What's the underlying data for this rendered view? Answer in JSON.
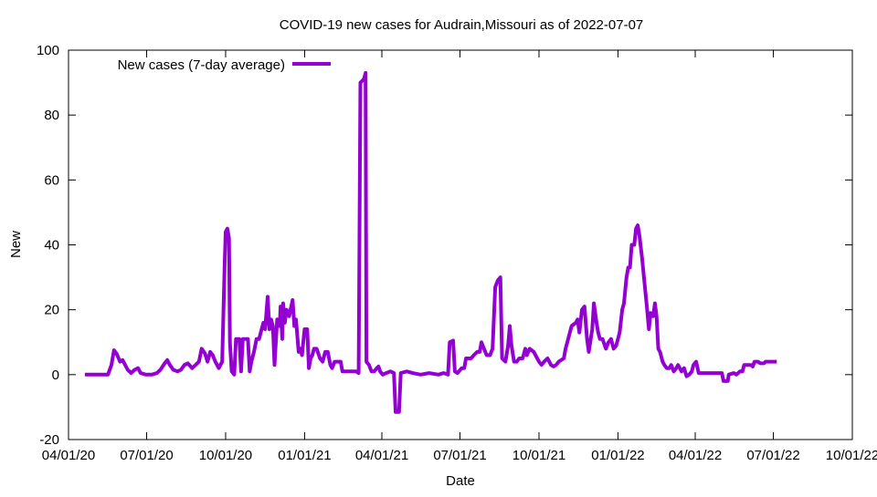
{
  "chart_data": {
    "type": "line",
    "title": "COVID-19 new cases for Audrain,Missouri as of 2022-07-07",
    "xlabel": "Date",
    "ylabel": "New",
    "x_units": "days since 04/01/20",
    "xlim": [
      0,
      913
    ],
    "ylim": [
      -20,
      100
    ],
    "yticks": [
      -20,
      0,
      20,
      40,
      60,
      80,
      100
    ],
    "xticks": [
      {
        "day": 0,
        "label": "04/01/20"
      },
      {
        "day": 91,
        "label": "07/01/20"
      },
      {
        "day": 183,
        "label": "10/01/20"
      },
      {
        "day": 275,
        "label": "01/01/21"
      },
      {
        "day": 365,
        "label": "04/01/21"
      },
      {
        "day": 456,
        "label": "07/01/21"
      },
      {
        "day": 548,
        "label": "10/01/21"
      },
      {
        "day": 640,
        "label": "01/01/22"
      },
      {
        "day": 730,
        "label": "04/01/22"
      },
      {
        "day": 821,
        "label": "07/01/22"
      },
      {
        "day": 913,
        "label": "10/01/22"
      }
    ],
    "legend": {
      "position": "top-left",
      "entries": [
        "New cases (7-day average)"
      ]
    },
    "grid": false,
    "series": [
      {
        "name": "New cases (7-day average)",
        "color": "#9400d3",
        "points": [
          [
            19,
            0
          ],
          [
            46,
            0
          ],
          [
            50,
            3
          ],
          [
            53,
            7.5
          ],
          [
            56,
            6.5
          ],
          [
            60,
            4
          ],
          [
            63,
            4.5
          ],
          [
            66,
            3
          ],
          [
            69,
            1.5
          ],
          [
            73,
            0.5
          ],
          [
            77,
            1.5
          ],
          [
            81,
            2
          ],
          [
            84,
            0.5
          ],
          [
            90,
            0
          ],
          [
            97,
            0
          ],
          [
            103,
            0.5
          ],
          [
            107,
            1.5
          ],
          [
            112,
            3.5
          ],
          [
            115,
            4.5
          ],
          [
            118,
            3
          ],
          [
            122,
            1.5
          ],
          [
            127,
            1
          ],
          [
            131,
            1.5
          ],
          [
            135,
            3
          ],
          [
            139,
            3.5
          ],
          [
            144,
            2
          ],
          [
            148,
            3
          ],
          [
            152,
            4
          ],
          [
            155,
            8
          ],
          [
            159,
            6.5
          ],
          [
            162,
            4
          ],
          [
            165,
            7
          ],
          [
            168,
            6
          ],
          [
            171,
            4
          ],
          [
            175,
            2
          ],
          [
            179,
            4
          ],
          [
            182,
            35
          ],
          [
            183,
            44
          ],
          [
            185,
            45
          ],
          [
            187,
            42
          ],
          [
            188,
            10
          ],
          [
            190,
            1
          ],
          [
            193,
            0
          ],
          [
            195,
            11
          ],
          [
            199,
            11
          ],
          [
            201,
            1
          ],
          [
            203,
            11
          ],
          [
            209,
            11
          ],
          [
            211,
            1
          ],
          [
            213,
            4
          ],
          [
            216,
            7
          ],
          [
            219,
            11
          ],
          [
            222,
            11
          ],
          [
            225,
            14
          ],
          [
            227,
            16
          ],
          [
            229,
            14
          ],
          [
            232,
            24
          ],
          [
            234,
            14
          ],
          [
            236,
            17
          ],
          [
            238,
            15
          ],
          [
            240,
            3
          ],
          [
            243,
            17
          ],
          [
            246,
            15
          ],
          [
            247,
            21
          ],
          [
            249,
            11
          ],
          [
            250,
            22
          ],
          [
            252,
            16
          ],
          [
            254,
            20
          ],
          [
            257,
            18
          ],
          [
            261,
            23
          ],
          [
            263,
            15
          ],
          [
            265,
            17
          ],
          [
            268,
            7
          ],
          [
            270,
            8
          ],
          [
            272,
            6
          ],
          [
            275,
            14
          ],
          [
            278,
            14
          ],
          [
            280,
            2
          ],
          [
            282,
            5
          ],
          [
            284,
            6
          ],
          [
            286,
            8
          ],
          [
            289,
            8
          ],
          [
            293,
            5
          ],
          [
            296,
            4
          ],
          [
            299,
            7
          ],
          [
            302,
            7
          ],
          [
            305,
            3
          ],
          [
            307,
            2
          ],
          [
            310,
            4
          ],
          [
            313,
            4
          ],
          [
            317,
            4
          ],
          [
            319,
            1
          ],
          [
            325,
            1
          ],
          [
            330,
            1
          ],
          [
            335,
            1
          ],
          [
            338,
            0.5
          ],
          [
            340,
            90
          ],
          [
            344,
            91
          ],
          [
            346,
            93
          ],
          [
            347,
            4
          ],
          [
            350,
            3
          ],
          [
            353,
            1
          ],
          [
            356,
            1
          ],
          [
            359,
            2
          ],
          [
            361,
            2.5
          ],
          [
            363,
            1
          ],
          [
            366,
            0
          ],
          [
            370,
            0.5
          ],
          [
            375,
            1
          ],
          [
            379,
            0.5
          ],
          [
            381,
            -11.5
          ],
          [
            385,
            -11.5
          ],
          [
            387,
            0.5
          ],
          [
            394,
            1
          ],
          [
            401,
            0.5
          ],
          [
            410,
            0
          ],
          [
            420,
            0.5
          ],
          [
            431,
            0
          ],
          [
            437,
            0.5
          ],
          [
            442,
            0
          ],
          [
            444,
            10
          ],
          [
            448,
            10.5
          ],
          [
            450,
            1
          ],
          [
            453,
            0.5
          ],
          [
            458,
            2
          ],
          [
            461,
            2
          ],
          [
            463,
            5
          ],
          [
            466,
            5
          ],
          [
            469,
            5
          ],
          [
            472,
            6
          ],
          [
            476,
            7
          ],
          [
            479,
            7
          ],
          [
            481,
            10
          ],
          [
            484,
            8
          ],
          [
            487,
            6
          ],
          [
            491,
            6
          ],
          [
            494,
            8
          ],
          [
            497,
            27
          ],
          [
            500,
            29
          ],
          [
            503,
            30
          ],
          [
            505,
            5
          ],
          [
            509,
            4
          ],
          [
            512,
            9
          ],
          [
            514,
            15
          ],
          [
            516,
            9
          ],
          [
            519,
            4
          ],
          [
            522,
            4
          ],
          [
            525,
            5
          ],
          [
            529,
            5
          ],
          [
            532,
            8
          ],
          [
            534,
            6
          ],
          [
            537,
            8
          ],
          [
            542,
            7
          ],
          [
            546,
            5
          ],
          [
            548,
            4
          ],
          [
            551,
            3
          ],
          [
            554,
            4
          ],
          [
            558,
            5
          ],
          [
            562,
            3
          ],
          [
            565,
            2.5
          ],
          [
            568,
            3
          ],
          [
            571,
            4
          ],
          [
            577,
            5
          ],
          [
            579,
            8
          ],
          [
            583,
            12
          ],
          [
            586,
            15
          ],
          [
            591,
            16
          ],
          [
            593,
            17
          ],
          [
            595,
            13
          ],
          [
            598,
            20
          ],
          [
            601,
            21
          ],
          [
            604,
            11
          ],
          [
            606,
            7
          ],
          [
            610,
            14
          ],
          [
            612,
            22
          ],
          [
            615,
            16
          ],
          [
            617,
            13
          ],
          [
            619,
            11
          ],
          [
            622,
            11
          ],
          [
            626,
            8
          ],
          [
            629,
            10
          ],
          [
            632,
            11
          ],
          [
            635,
            8
          ],
          [
            638,
            9
          ],
          [
            642,
            13
          ],
          [
            645,
            20
          ],
          [
            647,
            22
          ],
          [
            650,
            30
          ],
          [
            652,
            33
          ],
          [
            654,
            33
          ],
          [
            656,
            40
          ],
          [
            659,
            40
          ],
          [
            661,
            45
          ],
          [
            663,
            46
          ],
          [
            665,
            43
          ],
          [
            668,
            36
          ],
          [
            671,
            28
          ],
          [
            674,
            20
          ],
          [
            676,
            14
          ],
          [
            678,
            19
          ],
          [
            681,
            18
          ],
          [
            683,
            22
          ],
          [
            685,
            18
          ],
          [
            687,
            8
          ],
          [
            689,
            7
          ],
          [
            692,
            4
          ],
          [
            694,
            3
          ],
          [
            697,
            2
          ],
          [
            700,
            2
          ],
          [
            702,
            3
          ],
          [
            705,
            1
          ],
          [
            708,
            2
          ],
          [
            710,
            3
          ],
          [
            712,
            2
          ],
          [
            714,
            1
          ],
          [
            717,
            2
          ],
          [
            720,
            -0.5
          ],
          [
            723,
            0
          ],
          [
            726,
            1
          ],
          [
            728,
            3
          ],
          [
            731,
            4
          ],
          [
            734,
            0.5
          ],
          [
            740,
            0.5
          ],
          [
            750,
            0.5
          ],
          [
            761,
            0.5
          ],
          [
            763,
            -2
          ],
          [
            768,
            -2
          ],
          [
            769,
            0
          ],
          [
            775,
            0.5
          ],
          [
            778,
            0
          ],
          [
            782,
            1
          ],
          [
            785,
            1
          ],
          [
            787,
            3
          ],
          [
            792,
            3
          ],
          [
            795,
            3
          ],
          [
            797,
            2.5
          ],
          [
            799,
            4
          ],
          [
            803,
            4
          ],
          [
            806,
            3.5
          ],
          [
            810,
            3.5
          ],
          [
            812,
            4
          ],
          [
            817,
            4
          ],
          [
            825,
            4
          ]
        ]
      }
    ]
  }
}
